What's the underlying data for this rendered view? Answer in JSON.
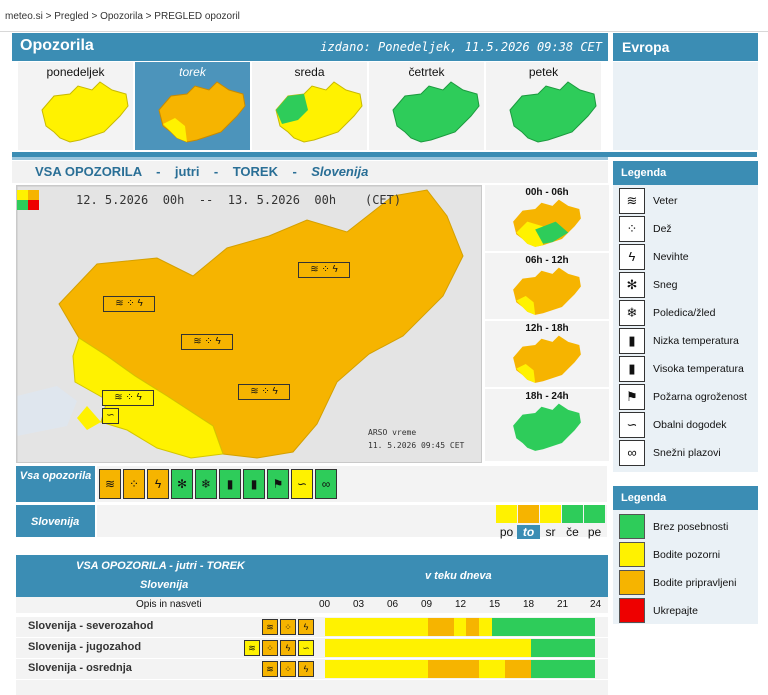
{
  "breadcrumb": [
    "meteo.si",
    "Pregled",
    "Opozorila",
    "PREGLED opozoril"
  ],
  "breadcrumb_sep": ">",
  "header": {
    "title": "Opozorila",
    "issued": "izdano: Ponedeljek, 11.5.2026 09:38 CET",
    "europe": "Evropa"
  },
  "days": [
    {
      "label": "ponedeljek",
      "selected": false
    },
    {
      "label": "torek",
      "selected": true
    },
    {
      "label": "sreda",
      "selected": false
    },
    {
      "label": "četrtek",
      "selected": false
    },
    {
      "label": "petek",
      "selected": false
    }
  ],
  "warning_title": {
    "a": "VSA OPOZORILA",
    "b": "jutri",
    "c": "TOREK",
    "d": "Slovenija",
    "sep": "-"
  },
  "map": {
    "period": "12. 5.2026  00h  --  13. 5.2026  00h    (CET)",
    "source": "ARSO vreme",
    "stamp": "11. 5.2026  09:45 CET"
  },
  "periods": [
    "00h - 06h",
    "06h - 12h",
    "12h - 18h",
    "18h - 24h"
  ],
  "all_warnings_label": "Vsa opozorila",
  "slovenija_label": "Slovenija",
  "day_strip": [
    "po",
    "to",
    "sr",
    "če",
    "pe"
  ],
  "day_strip_selected": 1,
  "table": {
    "title": "VSA OPOZORILA - jutri - TOREK",
    "subtitle": "Slovenija",
    "in_day": "v teku dneva",
    "desc": "Opis in nasveti",
    "hours": [
      "00",
      "03",
      "06",
      "09",
      "12",
      "15",
      "18",
      "21",
      "24"
    ],
    "rows": [
      {
        "name": "Slovenija - severozahod",
        "levels": [
          "y",
          "y",
          "y",
          "y",
          "y",
          "y",
          "y",
          "y",
          "o",
          "o",
          "y",
          "o",
          "y",
          "g",
          "g",
          "g",
          "g",
          "g",
          "g",
          "g",
          "g"
        ]
      },
      {
        "name": "Slovenija - jugozahod",
        "levels": [
          "y",
          "y",
          "y",
          "y",
          "y",
          "y",
          "y",
          "y",
          "y",
          "y",
          "y",
          "y",
          "y",
          "y",
          "y",
          "y",
          "g",
          "g",
          "g",
          "g",
          "g"
        ]
      },
      {
        "name": "Slovenija - osrednja",
        "levels": [
          "y",
          "y",
          "y",
          "y",
          "y",
          "y",
          "y",
          "y",
          "o",
          "o",
          "o",
          "o",
          "y",
          "y",
          "o",
          "o",
          "g",
          "g",
          "g",
          "g",
          "g"
        ]
      }
    ]
  },
  "legend": {
    "title": "Legenda",
    "types": [
      "Veter",
      "Dež",
      "Nevihte",
      "Sneg",
      "Poledica/žled",
      "Nizka temperatura",
      "Visoka temperatura",
      "Požarna ogroženost",
      "Obalni dogodek",
      "Snežni plazovi"
    ],
    "type_icons": [
      "≋",
      "⁘",
      "ϟ",
      "✻",
      "❄",
      "▮",
      "▮",
      "⚑",
      "∽",
      "∞"
    ],
    "levels_title": "Legenda",
    "levels": [
      {
        "label": "Brez posebnosti",
        "color": "#2ecc5a"
      },
      {
        "label": "Bodite pozorni",
        "color": "#fff200"
      },
      {
        "label": "Bodite pripravljeni",
        "color": "#f6b400"
      },
      {
        "label": "Ukrepajte",
        "color": "#ee0000"
      }
    ]
  },
  "colors": {
    "green": "#2ecc5a",
    "yellow": "#fff200",
    "orange": "#f6b400",
    "blue": "#3b8db4"
  }
}
